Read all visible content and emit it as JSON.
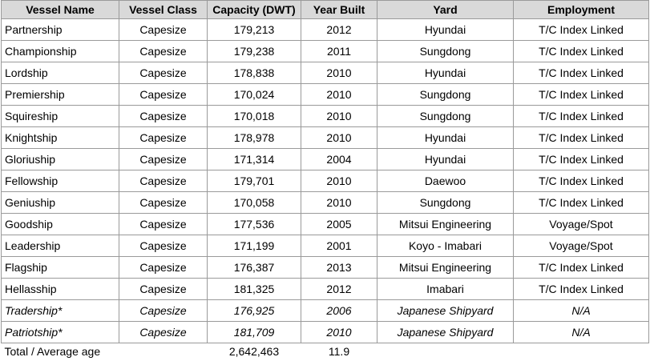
{
  "table": {
    "header": [
      "Vessel Name",
      "Vessel Class",
      "Capacity (DWT)",
      "Year Built",
      "Yard",
      "Employment"
    ],
    "rows": [
      {
        "cells": [
          "Partnership",
          "Capesize",
          "179,213",
          "2012",
          "Hyundai",
          "T/C Index Linked"
        ]
      },
      {
        "cells": [
          "Championship",
          "Capesize",
          "179,238",
          "2011",
          "Sungdong",
          "T/C Index Linked"
        ]
      },
      {
        "cells": [
          "Lordship",
          "Capesize",
          "178,838",
          "2010",
          "Hyundai",
          "T/C Index Linked"
        ]
      },
      {
        "cells": [
          "Premiership",
          "Capesize",
          "170,024",
          "2010",
          "Sungdong",
          "T/C Index Linked"
        ]
      },
      {
        "cells": [
          "Squireship",
          "Capesize",
          "170,018",
          "2010",
          "Sungdong",
          "T/C Index Linked"
        ]
      },
      {
        "cells": [
          "Knightship",
          "Capesize",
          "178,978",
          "2010",
          "Hyundai",
          "T/C Index Linked"
        ]
      },
      {
        "cells": [
          "Gloriuship",
          "Capesize",
          "171,314",
          "2004",
          "Hyundai",
          "T/C Index Linked"
        ]
      },
      {
        "cells": [
          "Fellowship",
          "Capesize",
          "179,701",
          "2010",
          "Daewoo",
          "T/C Index Linked"
        ]
      },
      {
        "cells": [
          "Geniuship",
          "Capesize",
          "170,058",
          "2010",
          "Sungdong",
          "T/C Index Linked"
        ]
      },
      {
        "cells": [
          "Goodship",
          "Capesize",
          "177,536",
          "2005",
          "Mitsui Engineering",
          "Voyage/Spot"
        ]
      },
      {
        "cells": [
          "Leadership",
          "Capesize",
          "171,199",
          "2001",
          "Koyo - Imabari",
          "Voyage/Spot"
        ]
      },
      {
        "cells": [
          "Flagship",
          "Capesize",
          "176,387",
          "2013",
          "Mitsui Engineering",
          "T/C Index Linked"
        ]
      },
      {
        "cells": [
          "Hellasship",
          "Capesize",
          "181,325",
          "2012",
          "Imabari",
          "T/C Index Linked"
        ]
      },
      {
        "cells": [
          "Tradership*",
          "Capesize",
          "176,925",
          "2006",
          "Japanese Shipyard",
          "N/A"
        ],
        "italic": true
      },
      {
        "cells": [
          "Patriotship*",
          "Capesize",
          "181,709",
          "2010",
          "Japanese Shipyard",
          "N/A"
        ],
        "italic": true
      }
    ],
    "total": {
      "label": "Total / Average age",
      "capacity": "2,642,463",
      "average_age": "11.9"
    }
  }
}
